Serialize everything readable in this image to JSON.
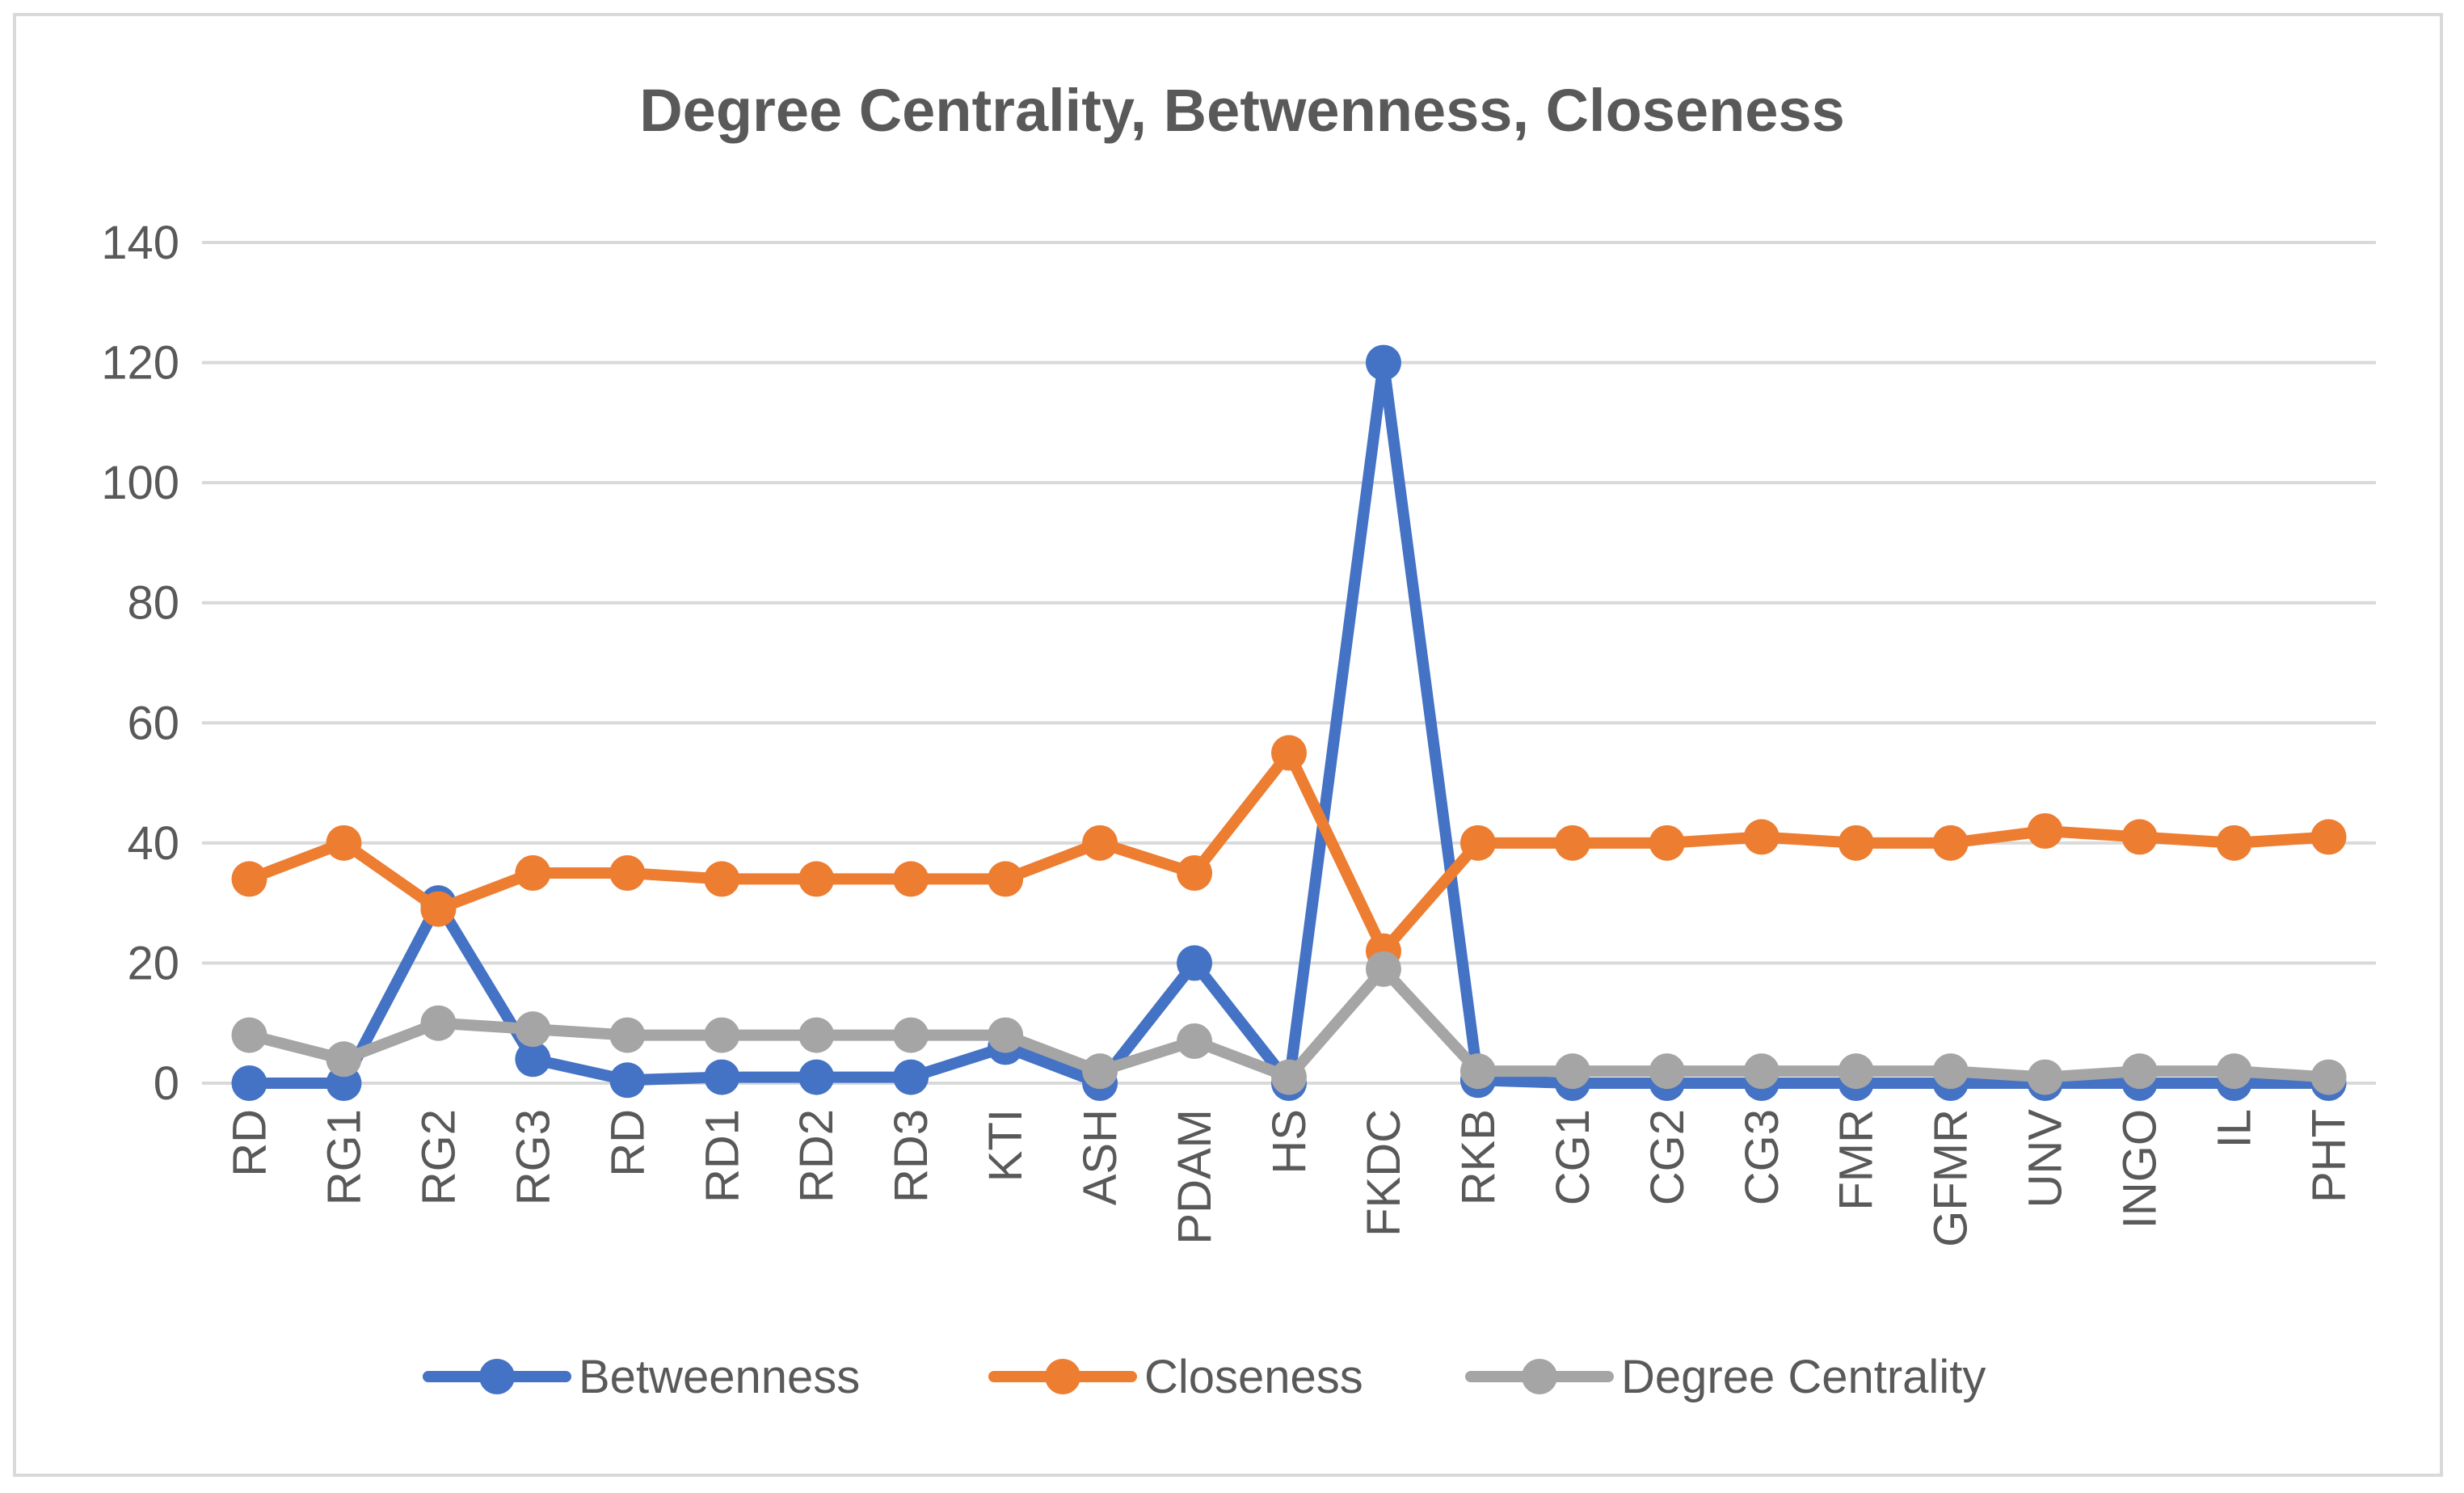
{
  "chart_data": {
    "type": "line",
    "title": "Degree Centrality, Betwenness, Closeness",
    "xlabel": "",
    "ylabel": "",
    "ylim": [
      0,
      140
    ],
    "yticks": [
      "0",
      "20",
      "40",
      "60",
      "80",
      "100",
      "120",
      "140"
    ],
    "grid": true,
    "legend_position": "bottom",
    "categories": [
      "RD",
      "RG1",
      "RG2",
      "RG3",
      "RD",
      "RD1",
      "RD2",
      "RD3",
      "KTI",
      "ASH",
      "PDAM",
      "HS",
      "FKDC",
      "RKB",
      "CG1",
      "CG2",
      "CG3",
      "FMR",
      "GFMR",
      "UNV",
      "INGO",
      "IL",
      "PHT"
    ],
    "series": [
      {
        "name": "Betweenness",
        "color": "#4472c4",
        "values": [
          0,
          0,
          30,
          4,
          0.5,
          1,
          1,
          1,
          6,
          0,
          20,
          0,
          120,
          0.5,
          0,
          0,
          0,
          0,
          0,
          0,
          0,
          0,
          0
        ]
      },
      {
        "name": "Closeness",
        "color": "#ed7d31",
        "values": [
          34,
          40,
          29,
          35,
          35,
          34,
          34,
          34,
          34,
          40,
          35,
          55,
          22,
          40,
          40,
          40,
          41,
          40,
          40,
          42,
          41,
          40,
          41
        ]
      },
      {
        "name": "Degree Centrality",
        "color": "#a5a5a5",
        "values": [
          8,
          4,
          10,
          9,
          8,
          8,
          8,
          8,
          8,
          2,
          7,
          1,
          19,
          2,
          2,
          2,
          2,
          2,
          2,
          1,
          2,
          2,
          1
        ]
      }
    ]
  }
}
